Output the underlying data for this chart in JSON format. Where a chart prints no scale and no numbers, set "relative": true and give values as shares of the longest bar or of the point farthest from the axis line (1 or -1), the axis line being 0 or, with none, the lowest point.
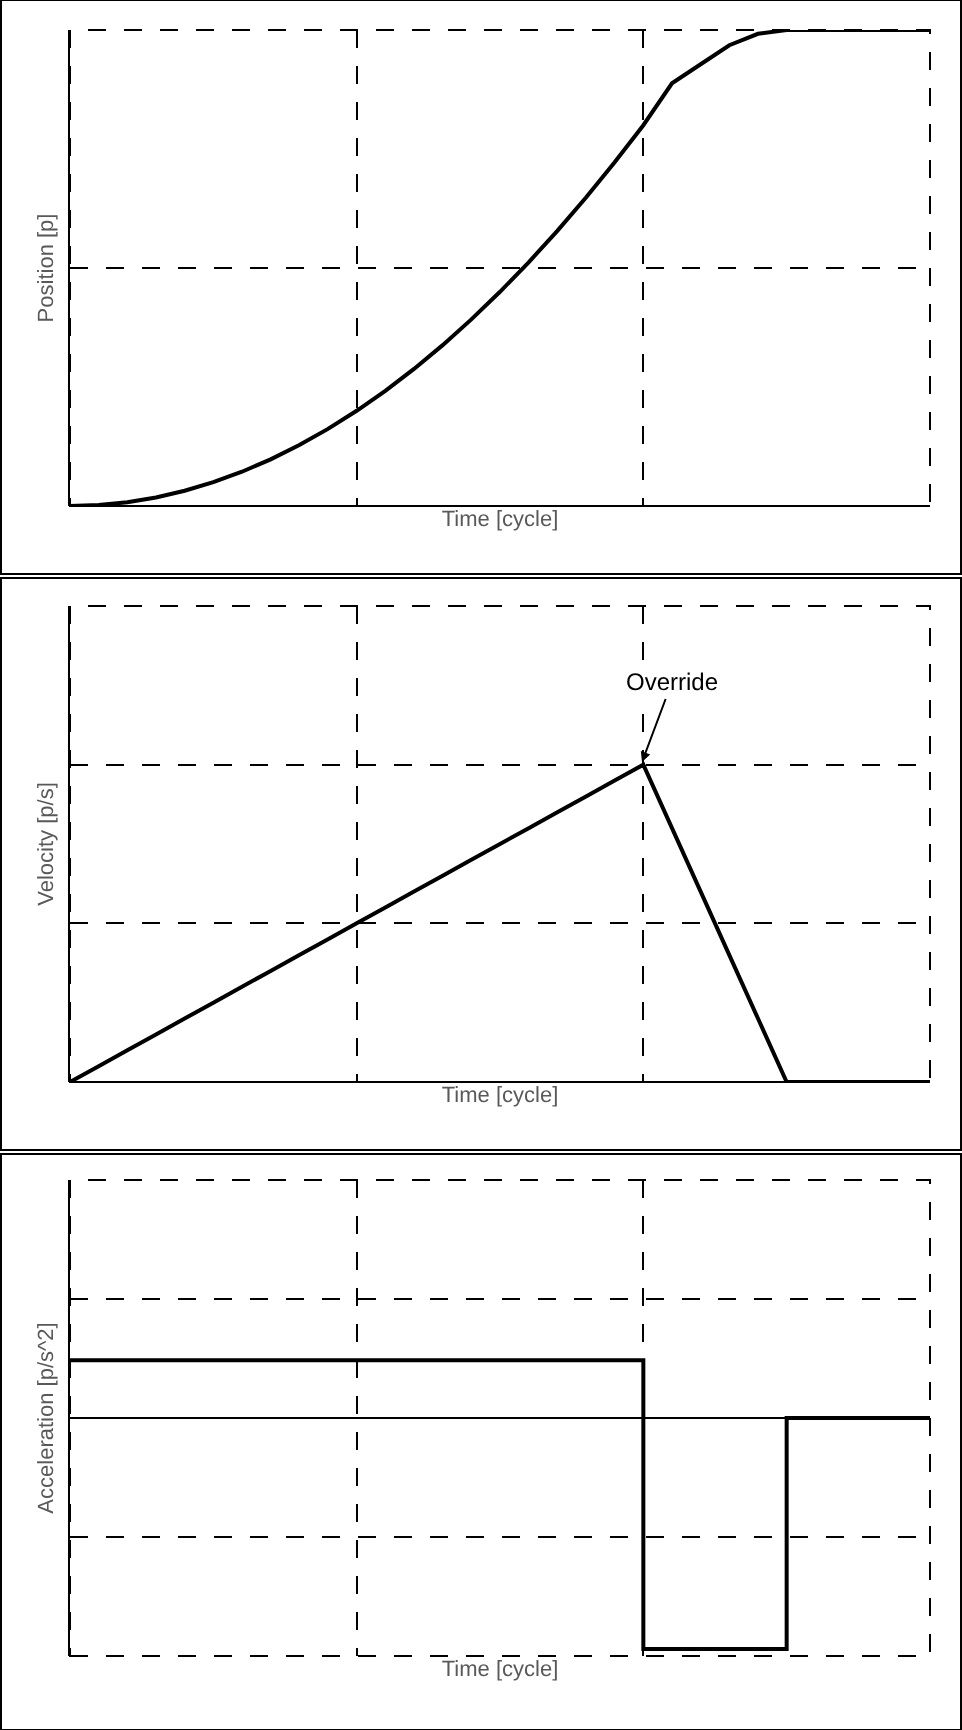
{
  "chart_data": [
    {
      "type": "line",
      "relative": true,
      "xlabel": "Time [cycle]",
      "ylabel": "Position [p]",
      "grid": true,
      "line_style": "solid",
      "tick_labels": false,
      "categories": [
        null,
        null,
        null,
        null,
        null,
        null,
        null,
        null,
        null,
        null,
        null,
        null,
        null,
        null,
        null,
        null,
        null,
        null,
        null,
        null,
        null,
        null,
        null,
        null,
        null,
        null,
        null,
        null,
        null,
        null,
        null
      ],
      "series": [
        {
          "color": "#000000",
          "values": [
            0,
            0.002,
            0.008,
            0.018,
            0.032,
            0.05,
            0.072,
            0.098,
            0.128,
            0.162,
            0.2,
            0.242,
            0.288,
            0.338,
            0.392,
            0.45,
            0.512,
            0.578,
            0.648,
            0.722,
            0.8,
            0.888,
            0.928,
            0.968,
            0.992,
            1,
            1,
            1,
            1,
            1,
            1
          ]
        }
      ]
    },
    {
      "type": "line",
      "relative": true,
      "xlabel": "Time [cycle]",
      "ylabel": "Velocity [p/s]",
      "grid": true,
      "line_style": "solid",
      "tick_labels": false,
      "categories": [
        null,
        null,
        null,
        null,
        null,
        null,
        null,
        null,
        null,
        null,
        null,
        null,
        null,
        null,
        null,
        null,
        null,
        null,
        null,
        null,
        null,
        null,
        null,
        null,
        null,
        null,
        null,
        null,
        null,
        null,
        null
      ],
      "series": [
        {
          "color": "#000000",
          "values": [
            0,
            0.05,
            0.1,
            0.15,
            0.2,
            0.25,
            0.3,
            0.35,
            0.4,
            0.45,
            0.5,
            0.55,
            0.6,
            0.65,
            0.7,
            0.75,
            0.8,
            0.85,
            0.9,
            0.95,
            1,
            0.8,
            0.6,
            0.4,
            0.2,
            0,
            0,
            0,
            0,
            0,
            0
          ]
        }
      ],
      "annotations": [
        "Override"
      ]
    },
    {
      "type": "step",
      "relative": true,
      "xlabel": "Time [cycle]",
      "ylabel": "Acceleration [p/s^2]",
      "grid": true,
      "line_style": "solid",
      "tick_labels": false,
      "categories": [
        null,
        null,
        null,
        null,
        null,
        null,
        null,
        null,
        null,
        null,
        null,
        null,
        null,
        null,
        null,
        null,
        null,
        null,
        null,
        null,
        null,
        null,
        null,
        null,
        null,
        null,
        null,
        null,
        null,
        null,
        null
      ],
      "series": [
        {
          "color": "#000000",
          "values": [
            0.25,
            0.25,
            0.25,
            0.25,
            0.25,
            0.25,
            0.25,
            0.25,
            0.25,
            0.25,
            0.25,
            0.25,
            0.25,
            0.25,
            0.25,
            0.25,
            0.25,
            0.25,
            0.25,
            0.25,
            -1,
            -1,
            -1,
            -1,
            -1,
            0,
            0,
            0,
            0,
            0,
            0
          ]
        }
      ]
    }
  ]
}
